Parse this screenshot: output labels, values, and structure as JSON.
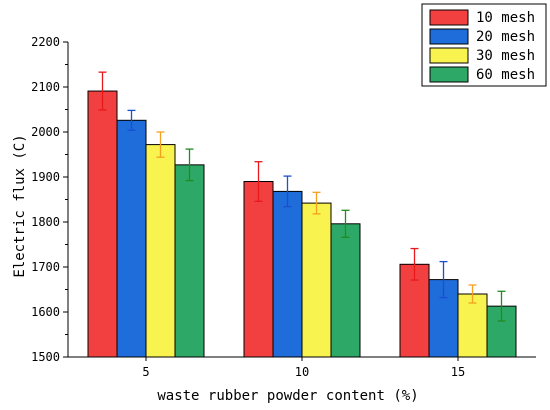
{
  "chart_data": {
    "type": "bar",
    "title": "",
    "xlabel": "waste rubber powder content (%)",
    "ylabel": "Electric flux (C)",
    "categories": [
      "5",
      "10",
      "15"
    ],
    "ylim": [
      1500,
      2200
    ],
    "yticks": [
      1500,
      1600,
      1700,
      1800,
      1900,
      2000,
      2100,
      2200
    ],
    "legend_position": "top-right",
    "series": [
      {
        "name": "10 mesh",
        "color": "#f23f40",
        "errcolor": "#e8191c",
        "values": [
          2091,
          1890,
          1706
        ],
        "errors": [
          42,
          44,
          35
        ]
      },
      {
        "name": "20 mesh",
        "color": "#1f6cdb",
        "errcolor": "#1a4fd0",
        "values": [
          2026,
          1868,
          1672
        ],
        "errors": [
          22,
          34,
          40
        ]
      },
      {
        "name": "30 mesh",
        "color": "#f9f34f",
        "errcolor": "#f5a01f",
        "values": [
          1972,
          1842,
          1640
        ],
        "errors": [
          28,
          24,
          20
        ]
      },
      {
        "name": "60 mesh",
        "color": "#2ea866",
        "errcolor": "#1f8c1f",
        "values": [
          1927,
          1796,
          1613
        ],
        "errors": [
          35,
          30,
          33
        ]
      }
    ]
  }
}
